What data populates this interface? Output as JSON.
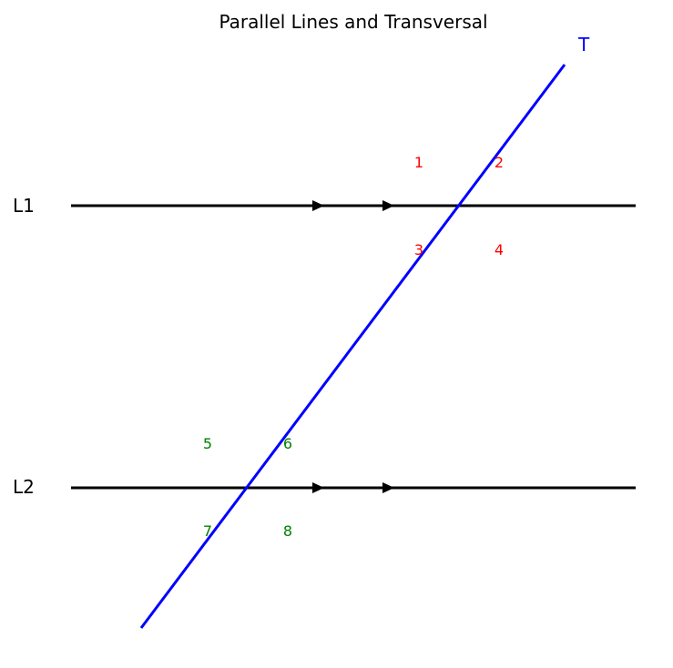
{
  "title": "Parallel Lines and Transversal",
  "lines": {
    "L1": {
      "label": "L1",
      "color": "#000000"
    },
    "L2": {
      "label": "L2",
      "color": "#000000"
    },
    "T": {
      "label": "T",
      "color": "#0000ff"
    }
  },
  "angles_upper": {
    "a1": "1",
    "a2": "2",
    "a3": "3",
    "a4": "4",
    "color": "#ff0000"
  },
  "angles_lower": {
    "a5": "5",
    "a6": "6",
    "a7": "7",
    "a8": "8",
    "color": "#008000"
  }
}
